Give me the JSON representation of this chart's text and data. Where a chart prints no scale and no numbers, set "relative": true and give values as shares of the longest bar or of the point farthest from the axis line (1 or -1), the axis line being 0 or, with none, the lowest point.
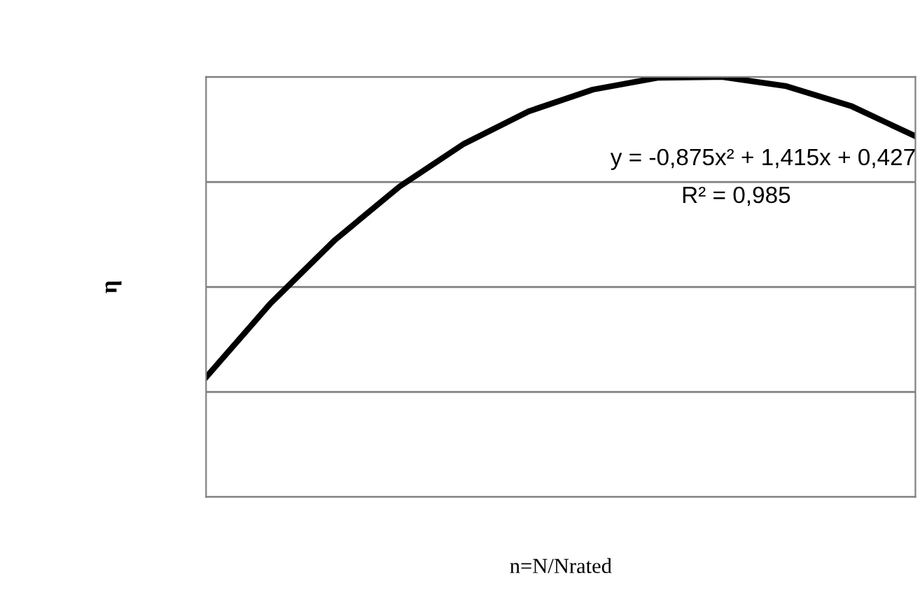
{
  "chart_data": {
    "type": "line",
    "relative": true,
    "xlabel": "n=N/Nrated",
    "ylabel": "η",
    "categories": [
      null,
      null,
      null,
      null,
      null,
      null,
      null,
      null,
      null,
      null,
      null,
      null
    ],
    "series": [
      {
        "color": "#000000",
        "values": [
          0.285,
          0.461,
          0.612,
          0.739,
          0.841,
          0.918,
          0.97,
          0.998,
          1,
          0.978,
          0.931,
          0.859
        ]
      }
    ],
    "annotations": [
      "y = -0,875x² + 1,415x + 0,427",
      "R² = 0,985"
    ],
    "grid": "y",
    "marker": "none",
    "line_style": "solid",
    "legend": false
  }
}
